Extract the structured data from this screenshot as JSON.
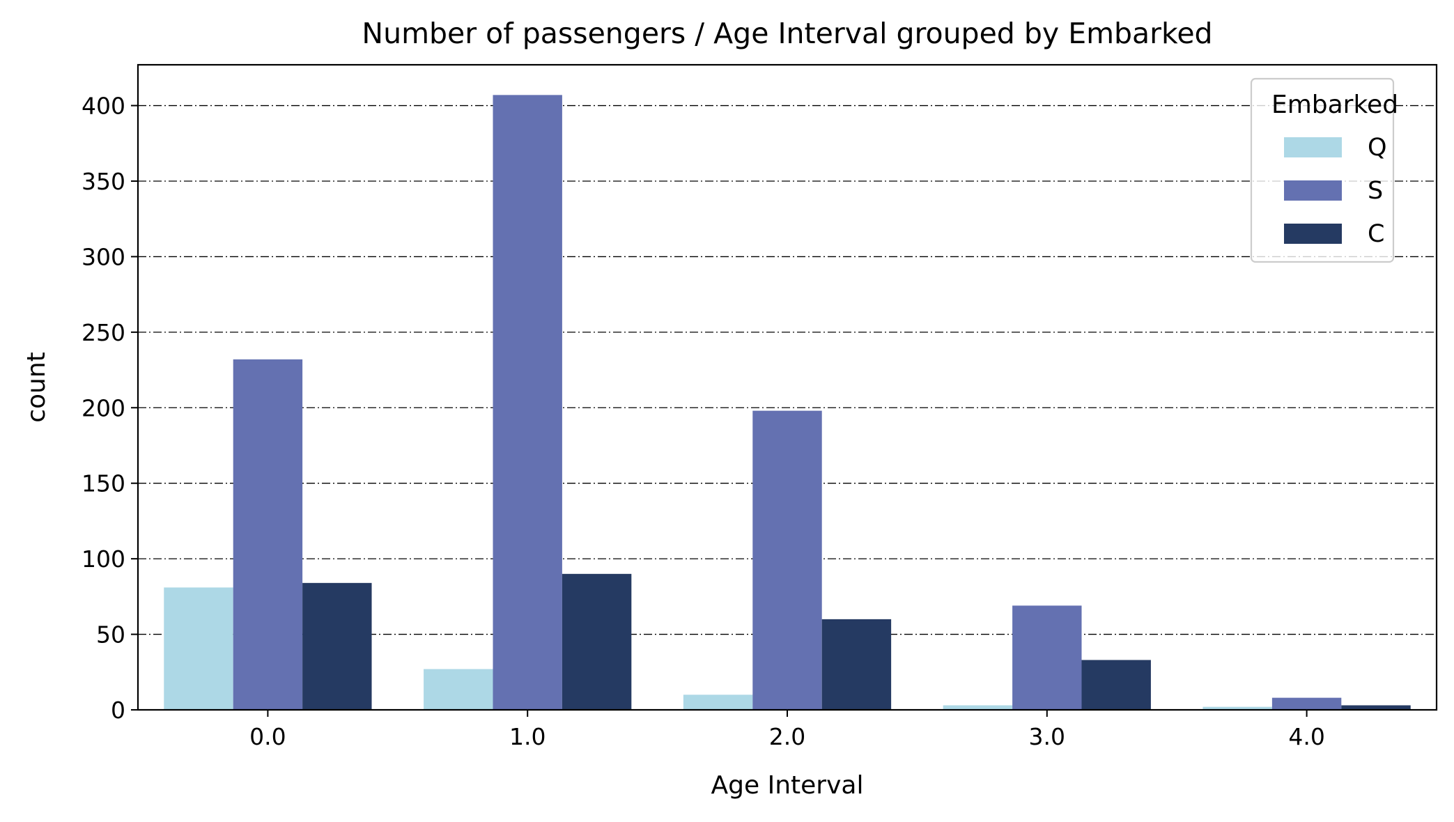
{
  "chart_data": {
    "type": "bar",
    "title": "Number of passengers / Age Interval grouped by Embarked",
    "xlabel": "Age Interval",
    "ylabel": "count",
    "categories": [
      "0.0",
      "1.0",
      "2.0",
      "3.0",
      "4.0"
    ],
    "series": [
      {
        "name": "Q",
        "color": "#add8e6",
        "values": [
          81,
          27,
          10,
          3,
          2
        ]
      },
      {
        "name": "S",
        "color": "#6471b1",
        "values": [
          232,
          407,
          198,
          69,
          8
        ]
      },
      {
        "name": "C",
        "color": "#253a62",
        "values": [
          84,
          90,
          60,
          33,
          3
        ]
      }
    ],
    "ylim": [
      0,
      427
    ],
    "yticks": [
      0,
      50,
      100,
      150,
      200,
      250,
      300,
      350,
      400
    ],
    "grid": {
      "axis": "y",
      "style": "dash-dot",
      "color": "#000000"
    },
    "legend": {
      "title": "Embarked",
      "placement": "top-right"
    }
  }
}
